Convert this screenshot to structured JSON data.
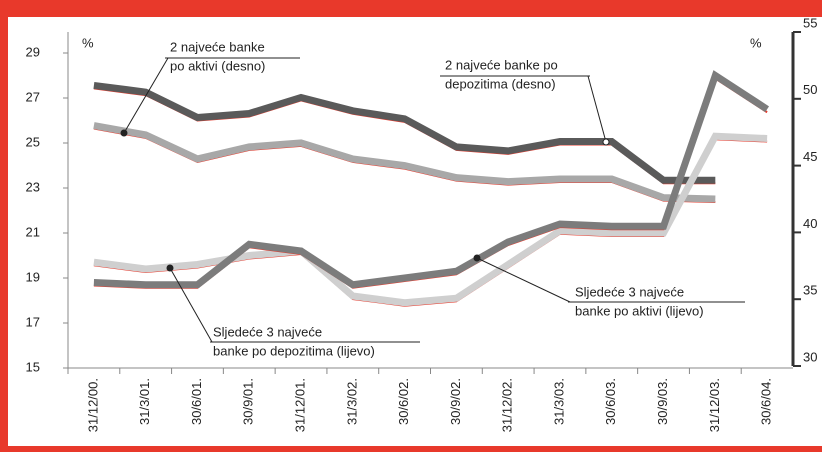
{
  "chart_data": {
    "type": "line",
    "y_unit_label": "%",
    "y2_unit_label": "%",
    "categories": [
      "31/12/00.",
      "31/3/01.",
      "30/6/01.",
      "30/9/01.",
      "31/12/01.",
      "31/3/02.",
      "30/6/02.",
      "30/9/02.",
      "31/12/02.",
      "31/3/03.",
      "30/6/03.",
      "30/9/03.",
      "31/12/03.",
      "30/6/04."
    ],
    "ylim": [
      15,
      29
    ],
    "yticks": [
      15,
      17,
      19,
      21,
      23,
      25,
      27,
      29
    ],
    "y2lim": [
      30,
      55
    ],
    "y2ticks": [
      30,
      35,
      40,
      45,
      50,
      55
    ],
    "series": [
      {
        "label_lines": [
          "2 najveće banke po",
          "depozitima (desno)"
        ],
        "color": "#5a5a5a",
        "axis": "y2",
        "values": [
          51.0,
          50.5,
          48.6,
          48.9,
          50.1,
          49.1,
          48.5,
          46.4,
          46.1,
          46.8,
          46.8,
          43.9,
          43.9,
          null
        ]
      },
      {
        "label_lines": [
          "2 najveće banke",
          "po aktivi (desno)"
        ],
        "color": "#a8a8a8",
        "axis": "y2",
        "values": [
          48.0,
          47.3,
          45.5,
          46.4,
          46.7,
          45.5,
          45.0,
          44.1,
          43.8,
          44.0,
          44.0,
          42.6,
          42.5,
          null
        ]
      },
      {
        "label_lines": [
          "Sljedeće 3 najveće",
          "banke po depozitima (lijevo)"
        ],
        "color": "#cfcfcf",
        "axis": "y",
        "values": [
          19.7,
          19.4,
          19.6,
          20.0,
          20.2,
          18.2,
          17.9,
          18.1,
          19.6,
          21.1,
          21.0,
          21.0,
          25.3,
          25.2
        ]
      },
      {
        "label_lines": [
          "Sljedeće 3 najveće",
          "banke po aktivi (lijevo)"
        ],
        "color": "#7c7c7c",
        "axis": "y",
        "values": [
          18.8,
          18.7,
          18.7,
          20.5,
          20.2,
          18.7,
          19.0,
          19.3,
          20.6,
          21.4,
          21.3,
          21.3,
          28.0,
          26.5
        ]
      }
    ],
    "shadow_color": "#e8392b"
  }
}
